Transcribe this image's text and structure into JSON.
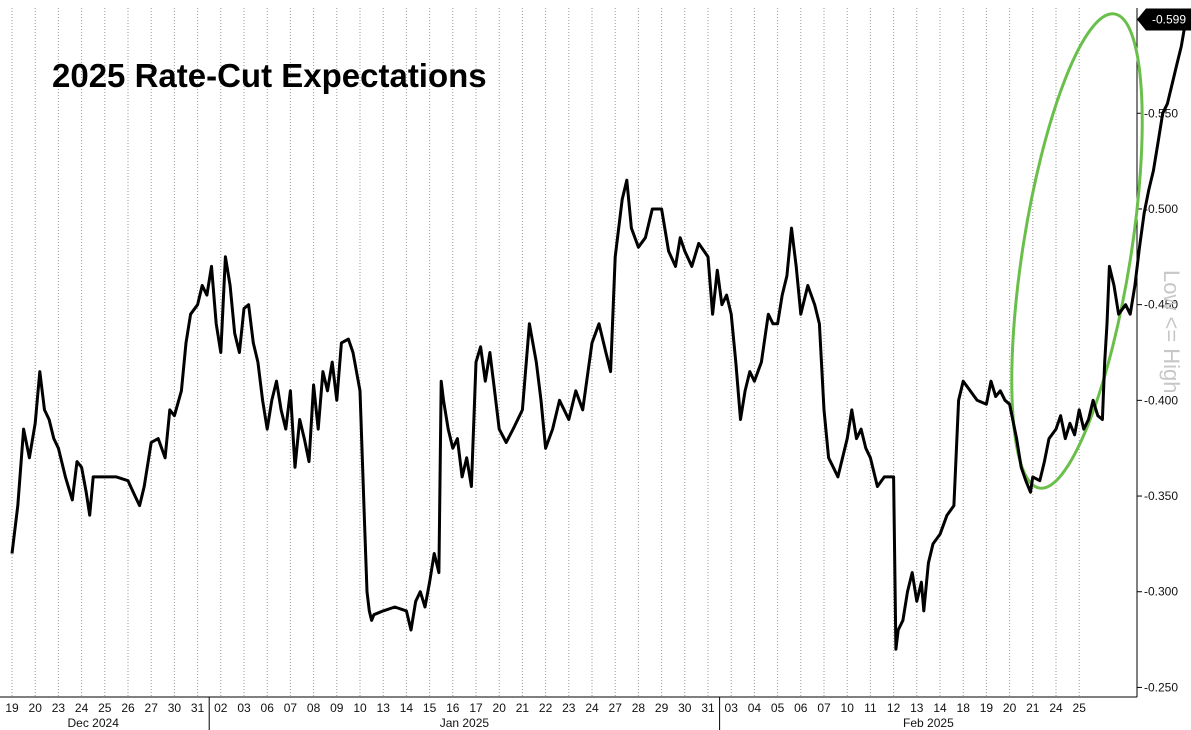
{
  "chart_data": {
    "type": "line",
    "title": "2025 Rate-Cut Expectations",
    "axis_note": "Low <= High",
    "last_value_label": "-0.599",
    "y_axis": {
      "side": "right",
      "inverted": true,
      "ylim": [
        -0.245,
        -0.605
      ],
      "ticks": [
        "-0.550",
        "-0.500",
        "-0.450",
        "-0.400",
        "-0.350",
        "-0.300",
        "-0.250"
      ]
    },
    "x_tick_labels": [
      "19",
      "20",
      "23",
      "24",
      "25",
      "26",
      "27",
      "30",
      "31",
      "02",
      "03",
      "06",
      "07",
      "08",
      "09",
      "10",
      "13",
      "14",
      "15",
      "16",
      "17",
      "20",
      "21",
      "22",
      "23",
      "24",
      "27",
      "28",
      "29",
      "30",
      "31",
      "03",
      "04",
      "05",
      "06",
      "07",
      "10",
      "11",
      "12",
      "13",
      "14",
      "18",
      "19",
      "20",
      "21",
      "24",
      "25"
    ],
    "months": [
      "Dec 2024",
      "Jan 2025",
      "Feb 2025"
    ],
    "grid": "vertical dotted",
    "series": [
      {
        "color": "#000000",
        "points": [
          [
            0,
            -0.32
          ],
          [
            0.25,
            -0.345
          ],
          [
            0.5,
            -0.385
          ],
          [
            0.75,
            -0.37
          ],
          [
            1,
            -0.388
          ],
          [
            1.2,
            -0.415
          ],
          [
            1.4,
            -0.395
          ],
          [
            1.6,
            -0.39
          ],
          [
            1.8,
            -0.38
          ],
          [
            2,
            -0.375
          ],
          [
            2.3,
            -0.36
          ],
          [
            2.6,
            -0.348
          ],
          [
            2.8,
            -0.368
          ],
          [
            3,
            -0.365
          ],
          [
            3.2,
            -0.352
          ],
          [
            3.35,
            -0.34
          ],
          [
            3.5,
            -0.36
          ],
          [
            4,
            -0.36
          ],
          [
            4.5,
            -0.36
          ],
          [
            5,
            -0.358
          ],
          [
            5.3,
            -0.35
          ],
          [
            5.5,
            -0.345
          ],
          [
            5.7,
            -0.355
          ],
          [
            6,
            -0.378
          ],
          [
            6.3,
            -0.38
          ],
          [
            6.6,
            -0.37
          ],
          [
            6.8,
            -0.395
          ],
          [
            7,
            -0.392
          ],
          [
            7.3,
            -0.405
          ],
          [
            7.5,
            -0.43
          ],
          [
            7.7,
            -0.445
          ],
          [
            8,
            -0.45
          ],
          [
            8.2,
            -0.46
          ],
          [
            8.4,
            -0.455
          ],
          [
            8.6,
            -0.47
          ],
          [
            8.8,
            -0.44
          ],
          [
            9,
            -0.425
          ],
          [
            9.2,
            -0.475
          ],
          [
            9.4,
            -0.46
          ],
          [
            9.6,
            -0.435
          ],
          [
            9.8,
            -0.425
          ],
          [
            10,
            -0.448
          ],
          [
            10.2,
            -0.45
          ],
          [
            10.4,
            -0.43
          ],
          [
            10.6,
            -0.42
          ],
          [
            10.8,
            -0.4
          ],
          [
            11,
            -0.385
          ],
          [
            11.2,
            -0.4
          ],
          [
            11.4,
            -0.41
          ],
          [
            11.6,
            -0.395
          ],
          [
            11.8,
            -0.385
          ],
          [
            12,
            -0.405
          ],
          [
            12.2,
            -0.365
          ],
          [
            12.4,
            -0.39
          ],
          [
            12.6,
            -0.38
          ],
          [
            12.8,
            -0.368
          ],
          [
            13,
            -0.408
          ],
          [
            13.2,
            -0.385
          ],
          [
            13.4,
            -0.415
          ],
          [
            13.6,
            -0.405
          ],
          [
            13.8,
            -0.42
          ],
          [
            14,
            -0.4
          ],
          [
            14.2,
            -0.43
          ],
          [
            14.5,
            -0.432
          ],
          [
            14.7,
            -0.425
          ],
          [
            15,
            -0.405
          ],
          [
            15.2,
            -0.335
          ],
          [
            15.3,
            -0.3
          ],
          [
            15.4,
            -0.29
          ],
          [
            15.5,
            -0.285
          ],
          [
            15.6,
            -0.288
          ],
          [
            16,
            -0.29
          ],
          [
            16.5,
            -0.292
          ],
          [
            17,
            -0.29
          ],
          [
            17.2,
            -0.28
          ],
          [
            17.4,
            -0.295
          ],
          [
            17.6,
            -0.3
          ],
          [
            17.8,
            -0.292
          ],
          [
            18,
            -0.305
          ],
          [
            18.2,
            -0.32
          ],
          [
            18.4,
            -0.31
          ],
          [
            18.5,
            -0.41
          ],
          [
            18.6,
            -0.4
          ],
          [
            18.8,
            -0.385
          ],
          [
            19,
            -0.375
          ],
          [
            19.2,
            -0.38
          ],
          [
            19.4,
            -0.36
          ],
          [
            19.6,
            -0.37
          ],
          [
            19.8,
            -0.355
          ],
          [
            20,
            -0.42
          ],
          [
            20.2,
            -0.428
          ],
          [
            20.4,
            -0.41
          ],
          [
            20.6,
            -0.425
          ],
          [
            20.8,
            -0.405
          ],
          [
            21,
            -0.385
          ],
          [
            21.3,
            -0.378
          ],
          [
            21.6,
            -0.385
          ],
          [
            22,
            -0.395
          ],
          [
            22.3,
            -0.44
          ],
          [
            22.6,
            -0.42
          ],
          [
            22.8,
            -0.4
          ],
          [
            23,
            -0.375
          ],
          [
            23.3,
            -0.385
          ],
          [
            23.6,
            -0.4
          ],
          [
            24,
            -0.39
          ],
          [
            24.3,
            -0.405
          ],
          [
            24.6,
            -0.395
          ],
          [
            25,
            -0.43
          ],
          [
            25.3,
            -0.44
          ],
          [
            25.6,
            -0.425
          ],
          [
            25.8,
            -0.415
          ],
          [
            26,
            -0.475
          ],
          [
            26.3,
            -0.505
          ],
          [
            26.5,
            -0.515
          ],
          [
            26.7,
            -0.49
          ],
          [
            27,
            -0.48
          ],
          [
            27.3,
            -0.485
          ],
          [
            27.6,
            -0.5
          ],
          [
            28,
            -0.5
          ],
          [
            28.3,
            -0.478
          ],
          [
            28.6,
            -0.47
          ],
          [
            28.8,
            -0.485
          ],
          [
            29,
            -0.478
          ],
          [
            29.3,
            -0.47
          ],
          [
            29.6,
            -0.482
          ],
          [
            30,
            -0.475
          ],
          [
            30.2,
            -0.445
          ],
          [
            30.4,
            -0.468
          ],
          [
            30.6,
            -0.45
          ],
          [
            30.8,
            -0.455
          ],
          [
            31,
            -0.445
          ],
          [
            31.2,
            -0.42
          ],
          [
            31.4,
            -0.39
          ],
          [
            31.6,
            -0.405
          ],
          [
            31.8,
            -0.415
          ],
          [
            32,
            -0.41
          ],
          [
            32.3,
            -0.42
          ],
          [
            32.6,
            -0.445
          ],
          [
            32.8,
            -0.44
          ],
          [
            33,
            -0.44
          ],
          [
            33.2,
            -0.455
          ],
          [
            33.4,
            -0.465
          ],
          [
            33.6,
            -0.49
          ],
          [
            33.8,
            -0.47
          ],
          [
            34,
            -0.445
          ],
          [
            34.3,
            -0.46
          ],
          [
            34.6,
            -0.45
          ],
          [
            34.8,
            -0.44
          ],
          [
            35,
            -0.395
          ],
          [
            35.2,
            -0.37
          ],
          [
            35.4,
            -0.365
          ],
          [
            35.6,
            -0.36
          ],
          [
            36,
            -0.38
          ],
          [
            36.2,
            -0.395
          ],
          [
            36.4,
            -0.38
          ],
          [
            36.6,
            -0.385
          ],
          [
            36.8,
            -0.375
          ],
          [
            37,
            -0.37
          ],
          [
            37.3,
            -0.355
          ],
          [
            37.6,
            -0.36
          ],
          [
            38,
            -0.36
          ],
          [
            38.1,
            -0.27
          ],
          [
            38.2,
            -0.28
          ],
          [
            38.4,
            -0.285
          ],
          [
            38.6,
            -0.3
          ],
          [
            38.8,
            -0.31
          ],
          [
            39,
            -0.295
          ],
          [
            39.2,
            -0.305
          ],
          [
            39.3,
            -0.29
          ],
          [
            39.5,
            -0.315
          ],
          [
            39.7,
            -0.325
          ],
          [
            40,
            -0.33
          ],
          [
            40.3,
            -0.34
          ],
          [
            40.6,
            -0.345
          ],
          [
            40.8,
            -0.4
          ],
          [
            41,
            -0.41
          ],
          [
            41.3,
            -0.405
          ],
          [
            41.6,
            -0.4
          ],
          [
            42,
            -0.398
          ],
          [
            42.2,
            -0.41
          ],
          [
            42.4,
            -0.402
          ],
          [
            42.6,
            -0.405
          ],
          [
            42.8,
            -0.4
          ],
          [
            43,
            -0.398
          ],
          [
            43.3,
            -0.38
          ],
          [
            43.5,
            -0.365
          ],
          [
            43.7,
            -0.358
          ],
          [
            43.9,
            -0.352
          ],
          [
            44,
            -0.36
          ],
          [
            44.3,
            -0.358
          ],
          [
            44.5,
            -0.368
          ],
          [
            44.7,
            -0.38
          ],
          [
            45,
            -0.385
          ],
          [
            45.2,
            -0.392
          ],
          [
            45.4,
            -0.38
          ],
          [
            45.6,
            -0.388
          ],
          [
            45.8,
            -0.382
          ],
          [
            46,
            -0.395
          ],
          [
            46.2,
            -0.385
          ],
          [
            46.4,
            -0.39
          ],
          [
            46.6,
            -0.4
          ],
          [
            46.8,
            -0.392
          ],
          [
            47,
            -0.39
          ],
          [
            47.1,
            -0.42
          ],
          [
            47.2,
            -0.44
          ],
          [
            47.3,
            -0.47
          ],
          [
            47.5,
            -0.46
          ],
          [
            47.7,
            -0.445
          ],
          [
            48,
            -0.45
          ],
          [
            48.2,
            -0.445
          ],
          [
            48.4,
            -0.46
          ],
          [
            48.6,
            -0.48
          ],
          [
            48.8,
            -0.498
          ],
          [
            49,
            -0.51
          ],
          [
            49.2,
            -0.52
          ],
          [
            49.4,
            -0.535
          ],
          [
            49.6,
            -0.55
          ],
          [
            49.8,
            -0.555
          ],
          [
            50,
            -0.565
          ],
          [
            50.2,
            -0.575
          ],
          [
            50.4,
            -0.585
          ],
          [
            50.6,
            -0.599
          ]
        ]
      }
    ],
    "highlight": {
      "shape": "ellipse",
      "color": "#6abf4b"
    }
  }
}
